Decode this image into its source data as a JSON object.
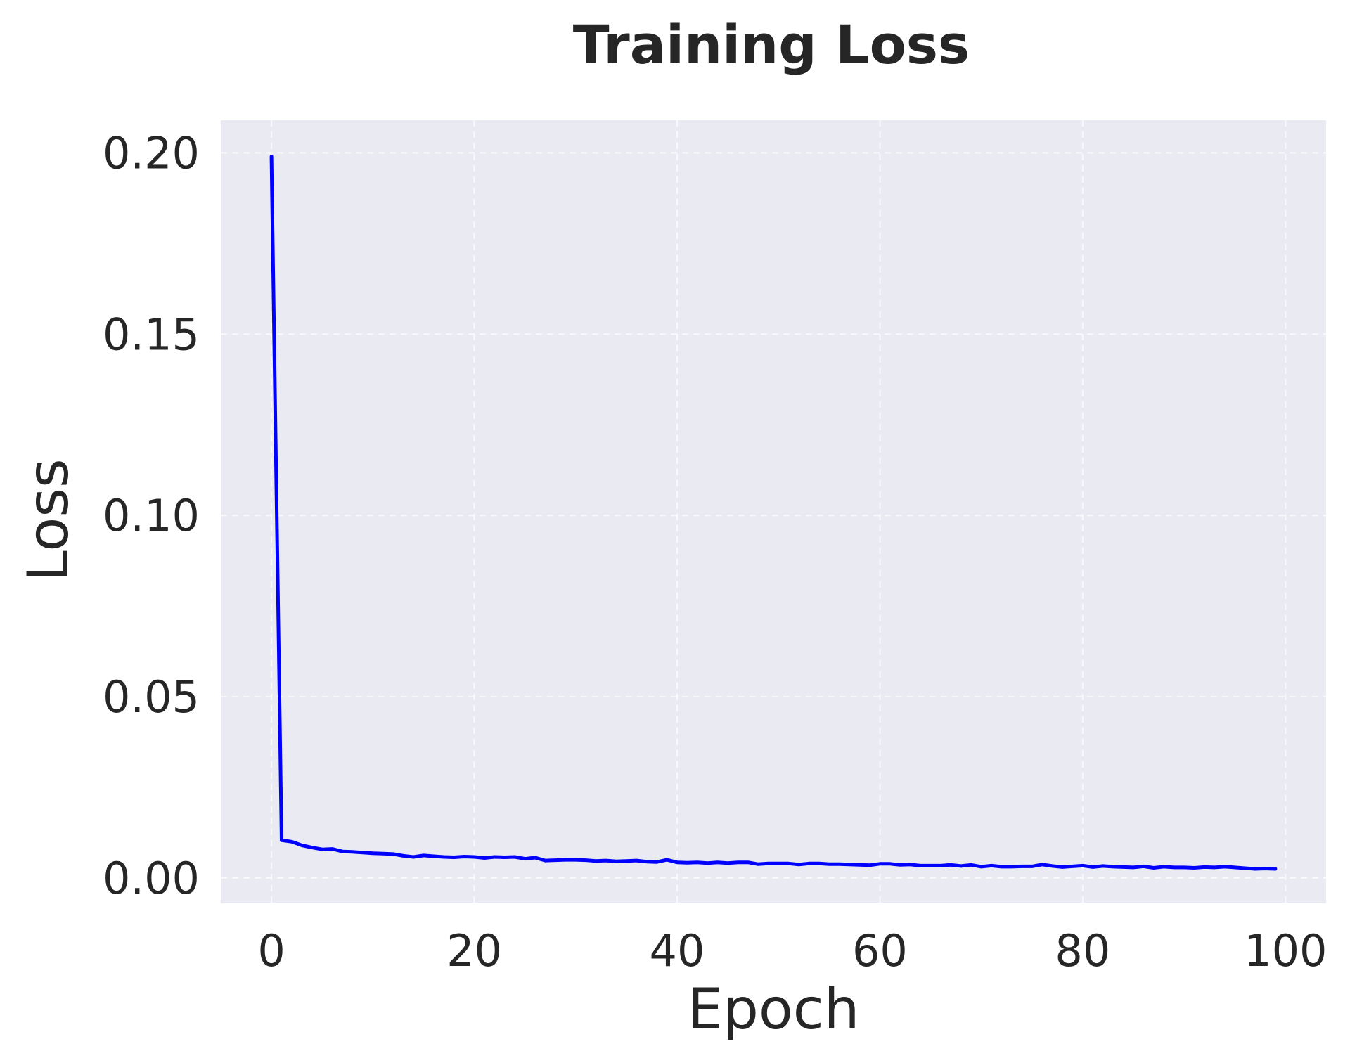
{
  "chart_data": {
    "type": "line",
    "title": "Training Loss",
    "xlabel": "Epoch",
    "ylabel": "Loss",
    "xlim": [
      -5,
      104
    ],
    "ylim": [
      -0.007,
      0.209
    ],
    "xticks": [
      0,
      20,
      40,
      60,
      80,
      100
    ],
    "yticks": [
      0.0,
      0.05,
      0.1,
      0.15,
      0.2
    ],
    "xtick_labels": [
      "0",
      "20",
      "40",
      "60",
      "80",
      "100"
    ],
    "ytick_labels": [
      "0.00",
      "0.05",
      "0.10",
      "0.15",
      "0.20"
    ],
    "grid": true,
    "line_color": "#0000ff",
    "series": [
      {
        "x": [
          0,
          1,
          2,
          3,
          4,
          5,
          6,
          7,
          8,
          9,
          10,
          11,
          12,
          13,
          14,
          15,
          16,
          17,
          18,
          19,
          20,
          21,
          22,
          23,
          24,
          25,
          26,
          27,
          28,
          29,
          30,
          31,
          32,
          33,
          34,
          35,
          36,
          37,
          38,
          39,
          40,
          41,
          42,
          43,
          44,
          45,
          46,
          47,
          48,
          49,
          50,
          51,
          52,
          53,
          54,
          55,
          56,
          57,
          58,
          59,
          60,
          61,
          62,
          63,
          64,
          65,
          66,
          67,
          68,
          69,
          70,
          71,
          72,
          73,
          74,
          75,
          76,
          77,
          78,
          79,
          80,
          81,
          82,
          83,
          84,
          85,
          86,
          87,
          88,
          89,
          90,
          91,
          92,
          93,
          94,
          95,
          96,
          97,
          98,
          99
        ],
        "values": [
          0.199,
          0.0104,
          0.01,
          0.009,
          0.0084,
          0.0079,
          0.008,
          0.0073,
          0.0072,
          0.007,
          0.0068,
          0.0067,
          0.0066,
          0.0061,
          0.0058,
          0.0062,
          0.006,
          0.0058,
          0.0057,
          0.0059,
          0.0058,
          0.0055,
          0.0058,
          0.0057,
          0.0058,
          0.0053,
          0.0056,
          0.0048,
          0.0049,
          0.005,
          0.005,
          0.0049,
          0.0047,
          0.0048,
          0.0046,
          0.0047,
          0.0048,
          0.0045,
          0.0044,
          0.005,
          0.0043,
          0.0042,
          0.0043,
          0.0041,
          0.0043,
          0.0041,
          0.0043,
          0.0043,
          0.0038,
          0.004,
          0.004,
          0.004,
          0.0037,
          0.004,
          0.004,
          0.0038,
          0.0038,
          0.0037,
          0.0036,
          0.0035,
          0.0039,
          0.0039,
          0.0036,
          0.0037,
          0.0034,
          0.0034,
          0.0034,
          0.0036,
          0.0033,
          0.0036,
          0.0031,
          0.0034,
          0.0031,
          0.0031,
          0.0032,
          0.0032,
          0.0037,
          0.0033,
          0.003,
          0.0032,
          0.0034,
          0.003,
          0.0033,
          0.0031,
          0.003,
          0.0029,
          0.0032,
          0.0028,
          0.0031,
          0.0029,
          0.0029,
          0.0028,
          0.003,
          0.0029,
          0.0031,
          0.0029,
          0.0027,
          0.0025,
          0.0026,
          0.0025
        ]
      }
    ]
  }
}
